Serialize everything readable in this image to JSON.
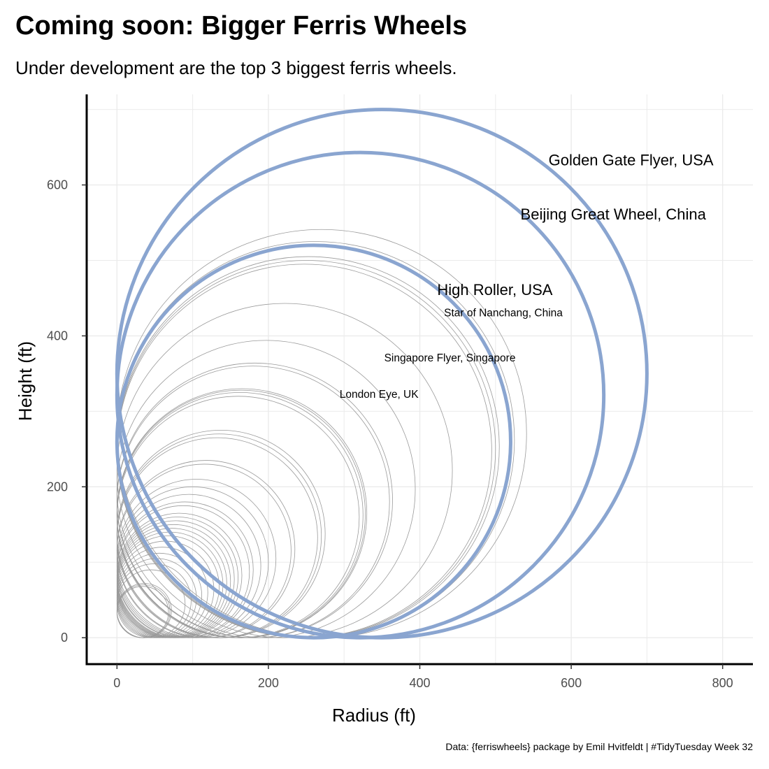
{
  "title": "Coming soon: Bigger Ferris Wheels",
  "subtitle": "Under development are the top 3 biggest ferris wheels.",
  "caption": "Data: {ferriswheels} package by Emil Hvitfeldt | #TidyTuesday Week 32",
  "colors": {
    "highlight": "#8aa5d0",
    "other": "#9a9a9a",
    "grid": "#ebebeb",
    "axis": "#000000"
  },
  "chart_data": {
    "type": "scatter",
    "xlabel": "Radius (ft)",
    "ylabel": "Height (ft)",
    "xlim": [
      -40,
      840
    ],
    "ylim": [
      -35,
      720
    ],
    "x_ticks": [
      0,
      200,
      400,
      600,
      800
    ],
    "y_ticks": [
      0,
      200,
      400,
      600
    ],
    "grid": true,
    "highlighted_wheels": [
      {
        "name": "Golden Gate Flyer, USA",
        "height": 700
      },
      {
        "name": "Beijing Great Wheel, China",
        "height": 643
      },
      {
        "name": "High Roller, USA",
        "height": 520
      }
    ],
    "other_wheels": [
      {
        "name": "Star of Nanchang, China",
        "height": 525,
        "label": true
      },
      {
        "name": "Singapore Flyer, Singapore",
        "height": 541,
        "label": true
      },
      {
        "name": "London Eye, UK",
        "height": 443,
        "label": true
      },
      {
        "height": 505
      },
      {
        "height": 500
      },
      {
        "height": 495
      },
      {
        "height": 394
      },
      {
        "height": 364
      },
      {
        "height": 360
      },
      {
        "height": 330
      },
      {
        "height": 328
      },
      {
        "height": 325
      },
      {
        "height": 320
      },
      {
        "height": 275
      },
      {
        "height": 270
      },
      {
        "height": 265
      },
      {
        "height": 235
      },
      {
        "height": 230
      },
      {
        "height": 210
      },
      {
        "height": 200
      },
      {
        "height": 190
      },
      {
        "height": 180
      },
      {
        "height": 175
      },
      {
        "height": 165
      },
      {
        "height": 160
      },
      {
        "height": 155
      },
      {
        "height": 150
      },
      {
        "height": 145
      },
      {
        "height": 140
      },
      {
        "height": 135
      },
      {
        "height": 128
      },
      {
        "height": 120
      },
      {
        "height": 112
      },
      {
        "height": 105
      },
      {
        "height": 98
      },
      {
        "height": 90
      },
      {
        "height": 72
      },
      {
        "height": 70
      },
      {
        "height": 68
      }
    ]
  }
}
